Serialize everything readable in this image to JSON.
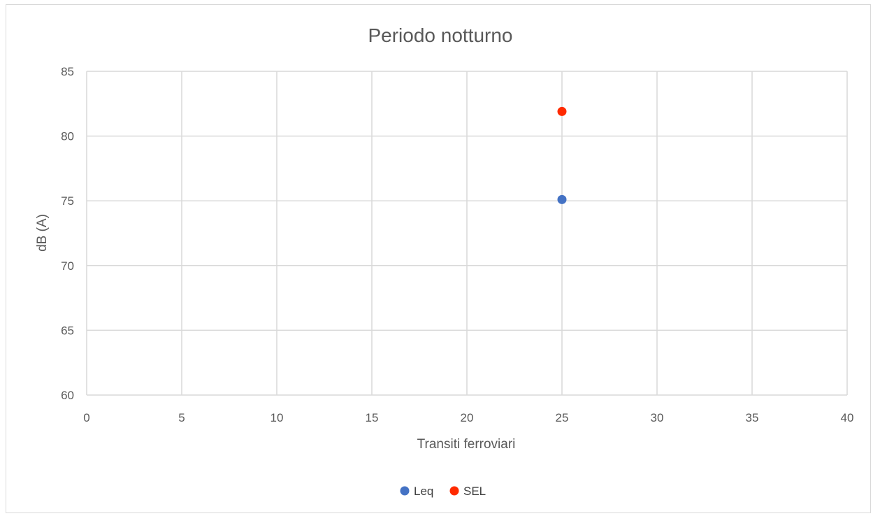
{
  "chart_data": {
    "type": "scatter",
    "title": "Periodo notturno",
    "xlabel": "Transiti ferroviari",
    "ylabel": "dB (A)",
    "xlim": [
      0,
      40
    ],
    "ylim": [
      60,
      85
    ],
    "xticks": [
      "0",
      "5",
      "10",
      "15",
      "20",
      "25",
      "30",
      "35",
      "40"
    ],
    "yticks": [
      "60",
      "65",
      "70",
      "75",
      "80",
      "85"
    ],
    "grid": true,
    "legend_position": "bottom",
    "series": [
      {
        "name": "Leq",
        "color": "#4472C4",
        "points": [
          {
            "x": 25,
            "y": 75.1
          }
        ]
      },
      {
        "name": "SEL",
        "color": "#FF2A00",
        "points": [
          {
            "x": 25,
            "y": 81.9
          }
        ]
      }
    ]
  }
}
